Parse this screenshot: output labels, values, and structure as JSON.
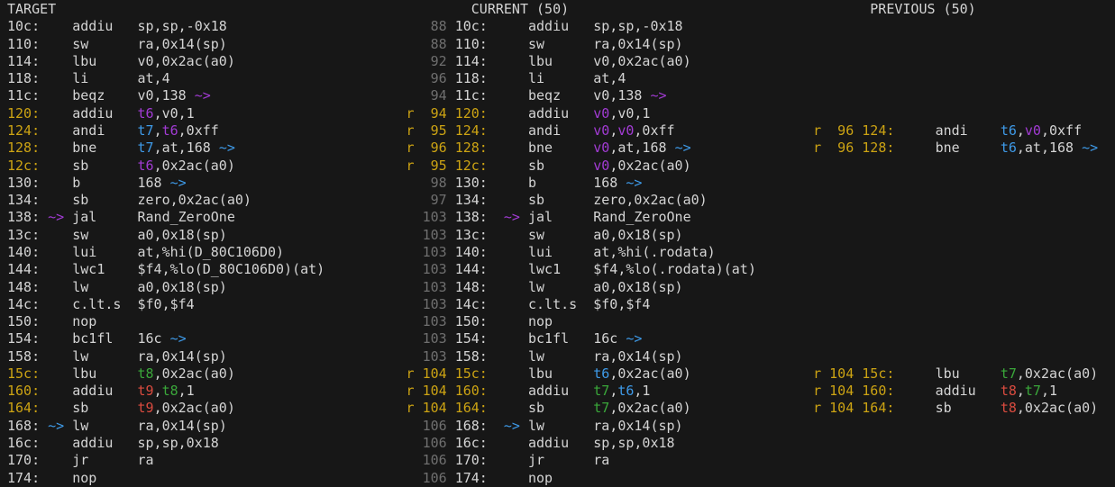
{
  "colors": {
    "bg": "#171717",
    "fg": "#d4d4d4",
    "dim": "#6f6f6f",
    "y": "#cca313",
    "p": "#a23bd4",
    "b": "#3e9ae8",
    "g": "#3aa73a",
    "r": "#da4b3f"
  },
  "headers": {
    "target": "TARGET",
    "current": "CURRENT (50)",
    "previous": "PREVIOUS (50)"
  },
  "rows": [
    {
      "t": {
        "addr": "10c:",
        "hl": false,
        "arr": null,
        "m": "addiu",
        "args": [
          [
            "sp,sp,-0x18",
            "fg"
          ]
        ]
      },
      "c": {
        "r": false,
        "num": "88",
        "hl": false,
        "addr": "10c:",
        "arr": null,
        "m": "addiu",
        "args": [
          [
            "sp,sp,-0x18",
            "fg"
          ]
        ]
      },
      "p": null
    },
    {
      "t": {
        "addr": "110:",
        "hl": false,
        "arr": null,
        "m": "sw",
        "args": [
          [
            "ra,0x14(sp)",
            "fg"
          ]
        ]
      },
      "c": {
        "r": false,
        "num": "88",
        "hl": false,
        "addr": "110:",
        "arr": null,
        "m": "sw",
        "args": [
          [
            "ra,0x14(sp)",
            "fg"
          ]
        ]
      },
      "p": null
    },
    {
      "t": {
        "addr": "114:",
        "hl": false,
        "arr": null,
        "m": "lbu",
        "args": [
          [
            "v0,0x2ac(a0)",
            "fg"
          ]
        ]
      },
      "c": {
        "r": false,
        "num": "92",
        "hl": false,
        "addr": "114:",
        "arr": null,
        "m": "lbu",
        "args": [
          [
            "v0,0x2ac(a0)",
            "fg"
          ]
        ]
      },
      "p": null
    },
    {
      "t": {
        "addr": "118:",
        "hl": false,
        "arr": null,
        "m": "li",
        "args": [
          [
            "at,4",
            "fg"
          ]
        ]
      },
      "c": {
        "r": false,
        "num": "96",
        "hl": false,
        "addr": "118:",
        "arr": null,
        "m": "li",
        "args": [
          [
            "at,4",
            "fg"
          ]
        ]
      },
      "p": null
    },
    {
      "t": {
        "addr": "11c:",
        "hl": false,
        "arr": null,
        "m": "beqz",
        "args": [
          [
            "v0,138 ",
            "fg"
          ],
          [
            "~>",
            "p",
            "arrow"
          ]
        ]
      },
      "c": {
        "r": false,
        "num": "94",
        "hl": false,
        "addr": "11c:",
        "arr": null,
        "m": "beqz",
        "args": [
          [
            "v0,138 ",
            "fg"
          ],
          [
            "~>",
            "p",
            "arrow"
          ]
        ]
      },
      "p": null
    },
    {
      "t": {
        "addr": "120:",
        "hl": true,
        "arr": null,
        "m": "addiu",
        "args": [
          [
            "t6",
            "p"
          ],
          [
            ",v0,1",
            "fg"
          ]
        ]
      },
      "c": {
        "r": true,
        "num": "94",
        "hl": true,
        "addr": "120:",
        "arr": null,
        "m": "addiu",
        "args": [
          [
            "v0",
            "p"
          ],
          [
            ",v0,1",
            "fg"
          ]
        ]
      },
      "p": null
    },
    {
      "t": {
        "addr": "124:",
        "hl": true,
        "arr": null,
        "m": "andi",
        "args": [
          [
            "t7",
            "b"
          ],
          [
            ",",
            "fg"
          ],
          [
            "t6",
            "p"
          ],
          [
            ",0xff",
            "fg"
          ]
        ]
      },
      "c": {
        "r": true,
        "num": "95",
        "hl": true,
        "addr": "124:",
        "arr": null,
        "m": "andi",
        "args": [
          [
            "v0",
            "p"
          ],
          [
            ",",
            "fg"
          ],
          [
            "v0",
            "p"
          ],
          [
            ",0xff",
            "fg"
          ]
        ]
      },
      "p": {
        "r": true,
        "num": "96",
        "hl": true,
        "addr": "124:",
        "arr": null,
        "m": "andi",
        "args": [
          [
            "t6",
            "b"
          ],
          [
            ",",
            "fg"
          ],
          [
            "v0",
            "p"
          ],
          [
            ",0xff",
            "fg"
          ]
        ]
      }
    },
    {
      "t": {
        "addr": "128:",
        "hl": true,
        "arr": null,
        "m": "bne",
        "args": [
          [
            "t7",
            "b"
          ],
          [
            ",at,168 ",
            "fg"
          ],
          [
            "~>",
            "b",
            "arrow"
          ]
        ]
      },
      "c": {
        "r": true,
        "num": "96",
        "hl": true,
        "addr": "128:",
        "arr": null,
        "m": "bne",
        "args": [
          [
            "v0",
            "p"
          ],
          [
            ",at,168 ",
            "fg"
          ],
          [
            "~>",
            "b",
            "arrow"
          ]
        ]
      },
      "p": {
        "r": true,
        "num": "96",
        "hl": true,
        "addr": "128:",
        "arr": null,
        "m": "bne",
        "args": [
          [
            "t6",
            "b"
          ],
          [
            ",at,168 ",
            "fg"
          ],
          [
            "~>",
            "b",
            "arrow"
          ]
        ]
      }
    },
    {
      "t": {
        "addr": "12c:",
        "hl": true,
        "arr": null,
        "m": "sb",
        "args": [
          [
            "t6",
            "p"
          ],
          [
            ",0x2ac(a0)",
            "fg"
          ]
        ]
      },
      "c": {
        "r": true,
        "num": "95",
        "hl": true,
        "addr": "12c:",
        "arr": null,
        "m": "sb",
        "args": [
          [
            "v0",
            "p"
          ],
          [
            ",0x2ac(a0)",
            "fg"
          ]
        ]
      },
      "p": null
    },
    {
      "t": {
        "addr": "130:",
        "hl": false,
        "arr": null,
        "m": "b",
        "args": [
          [
            "168 ",
            "fg"
          ],
          [
            "~>",
            "b",
            "arrow"
          ]
        ]
      },
      "c": {
        "r": false,
        "num": "98",
        "hl": false,
        "addr": "130:",
        "arr": null,
        "m": "b",
        "args": [
          [
            "168 ",
            "fg"
          ],
          [
            "~>",
            "b",
            "arrow"
          ]
        ]
      },
      "p": null
    },
    {
      "t": {
        "addr": "134:",
        "hl": false,
        "arr": null,
        "m": "sb",
        "args": [
          [
            "zero,0x2ac(a0)",
            "fg"
          ]
        ]
      },
      "c": {
        "r": false,
        "num": "97",
        "hl": false,
        "addr": "134:",
        "arr": null,
        "m": "sb",
        "args": [
          [
            "zero,0x2ac(a0)",
            "fg"
          ]
        ]
      },
      "p": null
    },
    {
      "t": {
        "addr": "138:",
        "hl": false,
        "arr": [
          "~>",
          "p"
        ],
        "m": "jal",
        "args": [
          [
            "Rand_ZeroOne",
            "fg"
          ]
        ]
      },
      "c": {
        "r": false,
        "num": "103",
        "hl": false,
        "addr": "138:",
        "arr": [
          "~>",
          "p"
        ],
        "m": "jal",
        "args": [
          [
            "Rand_ZeroOne",
            "fg"
          ]
        ]
      },
      "p": null
    },
    {
      "t": {
        "addr": "13c:",
        "hl": false,
        "arr": null,
        "m": "sw",
        "args": [
          [
            "a0,0x18(sp)",
            "fg"
          ]
        ]
      },
      "c": {
        "r": false,
        "num": "103",
        "hl": false,
        "addr": "13c:",
        "arr": null,
        "m": "sw",
        "args": [
          [
            "a0,0x18(sp)",
            "fg"
          ]
        ]
      },
      "p": null
    },
    {
      "t": {
        "addr": "140:",
        "hl": false,
        "arr": null,
        "m": "lui",
        "args": [
          [
            "at,%hi(D_80C106D0)",
            "fg"
          ]
        ]
      },
      "c": {
        "r": false,
        "num": "103",
        "hl": false,
        "addr": "140:",
        "arr": null,
        "m": "lui",
        "args": [
          [
            "at,%hi(.rodata)",
            "fg"
          ]
        ]
      },
      "p": null
    },
    {
      "t": {
        "addr": "144:",
        "hl": false,
        "arr": null,
        "m": "lwc1",
        "args": [
          [
            "$f4,%lo(D_80C106D0)(at)",
            "fg"
          ]
        ]
      },
      "c": {
        "r": false,
        "num": "103",
        "hl": false,
        "addr": "144:",
        "arr": null,
        "m": "lwc1",
        "args": [
          [
            "$f4,%lo(.rodata)(at)",
            "fg"
          ]
        ]
      },
      "p": null
    },
    {
      "t": {
        "addr": "148:",
        "hl": false,
        "arr": null,
        "m": "lw",
        "args": [
          [
            "a0,0x18(sp)",
            "fg"
          ]
        ]
      },
      "c": {
        "r": false,
        "num": "103",
        "hl": false,
        "addr": "148:",
        "arr": null,
        "m": "lw",
        "args": [
          [
            "a0,0x18(sp)",
            "fg"
          ]
        ]
      },
      "p": null
    },
    {
      "t": {
        "addr": "14c:",
        "hl": false,
        "arr": null,
        "m": "c.lt.s",
        "args": [
          [
            "$f0,$f4",
            "fg"
          ]
        ]
      },
      "c": {
        "r": false,
        "num": "103",
        "hl": false,
        "addr": "14c:",
        "arr": null,
        "m": "c.lt.s",
        "args": [
          [
            "$f0,$f4",
            "fg"
          ]
        ]
      },
      "p": null
    },
    {
      "t": {
        "addr": "150:",
        "hl": false,
        "arr": null,
        "m": "nop",
        "args": []
      },
      "c": {
        "r": false,
        "num": "103",
        "hl": false,
        "addr": "150:",
        "arr": null,
        "m": "nop",
        "args": []
      },
      "p": null
    },
    {
      "t": {
        "addr": "154:",
        "hl": false,
        "arr": null,
        "m": "bc1fl",
        "args": [
          [
            "16c ",
            "fg"
          ],
          [
            "~>",
            "b",
            "arrow"
          ]
        ]
      },
      "c": {
        "r": false,
        "num": "103",
        "hl": false,
        "addr": "154:",
        "arr": null,
        "m": "bc1fl",
        "args": [
          [
            "16c ",
            "fg"
          ],
          [
            "~>",
            "b",
            "arrow"
          ]
        ]
      },
      "p": null
    },
    {
      "t": {
        "addr": "158:",
        "hl": false,
        "arr": null,
        "m": "lw",
        "args": [
          [
            "ra,0x14(sp)",
            "fg"
          ]
        ]
      },
      "c": {
        "r": false,
        "num": "103",
        "hl": false,
        "addr": "158:",
        "arr": null,
        "m": "lw",
        "args": [
          [
            "ra,0x14(sp)",
            "fg"
          ]
        ]
      },
      "p": null
    },
    {
      "t": {
        "addr": "15c:",
        "hl": true,
        "arr": null,
        "m": "lbu",
        "args": [
          [
            "t8",
            "g"
          ],
          [
            ",0x2ac(a0)",
            "fg"
          ]
        ]
      },
      "c": {
        "r": true,
        "num": "104",
        "hl": true,
        "addr": "15c:",
        "arr": null,
        "m": "lbu",
        "args": [
          [
            "t6",
            "b"
          ],
          [
            ",0x2ac(a0)",
            "fg"
          ]
        ]
      },
      "p": {
        "r": true,
        "num": "104",
        "hl": true,
        "addr": "15c:",
        "arr": null,
        "m": "lbu",
        "args": [
          [
            "t7",
            "g"
          ],
          [
            ",0x2ac(a0)",
            "fg"
          ]
        ]
      }
    },
    {
      "t": {
        "addr": "160:",
        "hl": true,
        "arr": null,
        "m": "addiu",
        "args": [
          [
            "t9",
            "r"
          ],
          [
            ",",
            "fg"
          ],
          [
            "t8",
            "g"
          ],
          [
            ",1",
            "fg"
          ]
        ]
      },
      "c": {
        "r": true,
        "num": "104",
        "hl": true,
        "addr": "160:",
        "arr": null,
        "m": "addiu",
        "args": [
          [
            "t7",
            "g"
          ],
          [
            ",",
            "fg"
          ],
          [
            "t6",
            "b"
          ],
          [
            ",1",
            "fg"
          ]
        ]
      },
      "p": {
        "r": true,
        "num": "104",
        "hl": true,
        "addr": "160:",
        "arr": null,
        "m": "addiu",
        "args": [
          [
            "t8",
            "r"
          ],
          [
            ",",
            "fg"
          ],
          [
            "t7",
            "g"
          ],
          [
            ",1",
            "fg"
          ]
        ]
      }
    },
    {
      "t": {
        "addr": "164:",
        "hl": true,
        "arr": null,
        "m": "sb",
        "args": [
          [
            "t9",
            "r"
          ],
          [
            ",0x2ac(a0)",
            "fg"
          ]
        ]
      },
      "c": {
        "r": true,
        "num": "104",
        "hl": true,
        "addr": "164:",
        "arr": null,
        "m": "sb",
        "args": [
          [
            "t7",
            "g"
          ],
          [
            ",0x2ac(a0)",
            "fg"
          ]
        ]
      },
      "p": {
        "r": true,
        "num": "104",
        "hl": true,
        "addr": "164:",
        "arr": null,
        "m": "sb",
        "args": [
          [
            "t8",
            "r"
          ],
          [
            ",0x2ac(a0)",
            "fg"
          ]
        ]
      }
    },
    {
      "t": {
        "addr": "168:",
        "hl": false,
        "arr": [
          "~>",
          "b"
        ],
        "m": "lw",
        "args": [
          [
            "ra,0x14(sp)",
            "fg"
          ]
        ]
      },
      "c": {
        "r": false,
        "num": "106",
        "hl": false,
        "addr": "168:",
        "arr": [
          "~>",
          "b"
        ],
        "m": "lw",
        "args": [
          [
            "ra,0x14(sp)",
            "fg"
          ]
        ]
      },
      "p": null
    },
    {
      "t": {
        "addr": "16c:",
        "hl": false,
        "arr": null,
        "m": "addiu",
        "args": [
          [
            "sp,sp,0x18",
            "fg"
          ]
        ]
      },
      "c": {
        "r": false,
        "num": "106",
        "hl": false,
        "addr": "16c:",
        "arr": null,
        "m": "addiu",
        "args": [
          [
            "sp,sp,0x18",
            "fg"
          ]
        ]
      },
      "p": null
    },
    {
      "t": {
        "addr": "170:",
        "hl": false,
        "arr": null,
        "m": "jr",
        "args": [
          [
            "ra",
            "fg"
          ]
        ]
      },
      "c": {
        "r": false,
        "num": "106",
        "hl": false,
        "addr": "170:",
        "arr": null,
        "m": "jr",
        "args": [
          [
            "ra",
            "fg"
          ]
        ]
      },
      "p": null
    },
    {
      "t": {
        "addr": "174:",
        "hl": false,
        "arr": null,
        "m": "nop",
        "args": []
      },
      "c": {
        "r": false,
        "num": "106",
        "hl": false,
        "addr": "174:",
        "arr": null,
        "m": "nop",
        "args": []
      },
      "p": null
    }
  ]
}
